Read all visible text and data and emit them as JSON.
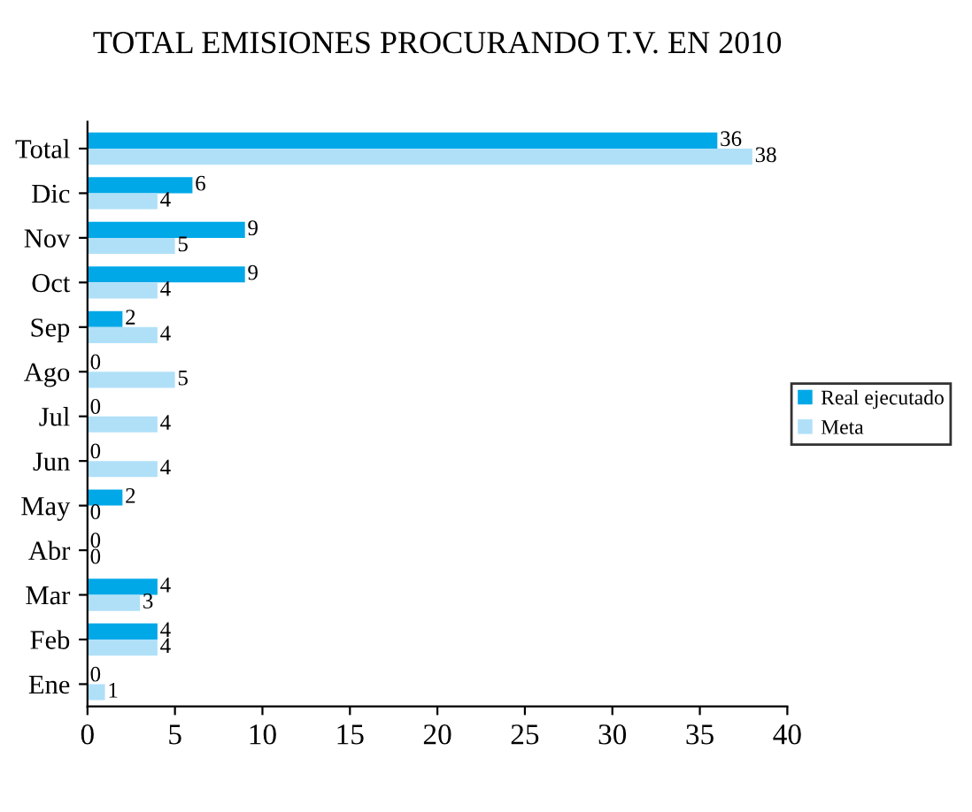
{
  "chart_data": {
    "type": "bar",
    "orientation": "horizontal",
    "title": "TOTAL EMISIONES PROCURANDO T.V. EN 2010",
    "categories": [
      "Total",
      "Dic",
      "Nov",
      "Oct",
      "Sep",
      "Ago",
      "Jul",
      "Jun",
      "May",
      "Abr",
      "Mar",
      "Feb",
      "Ene"
    ],
    "series": [
      {
        "name": "Real ejecutado",
        "color": "#00a8e8",
        "values": [
          36,
          6,
          9,
          9,
          2,
          0,
          0,
          0,
          2,
          0,
          4,
          4,
          0
        ]
      },
      {
        "name": "Meta",
        "color": "#b0e0f8",
        "values": [
          38,
          4,
          5,
          4,
          4,
          5,
          4,
          4,
          0,
          0,
          3,
          4,
          1
        ]
      }
    ],
    "xlim": [
      0,
      40
    ],
    "xticks": [
      0,
      5,
      10,
      15,
      20,
      25,
      30,
      35,
      40
    ],
    "data_labels": true,
    "legend": "right",
    "grid": false
  }
}
